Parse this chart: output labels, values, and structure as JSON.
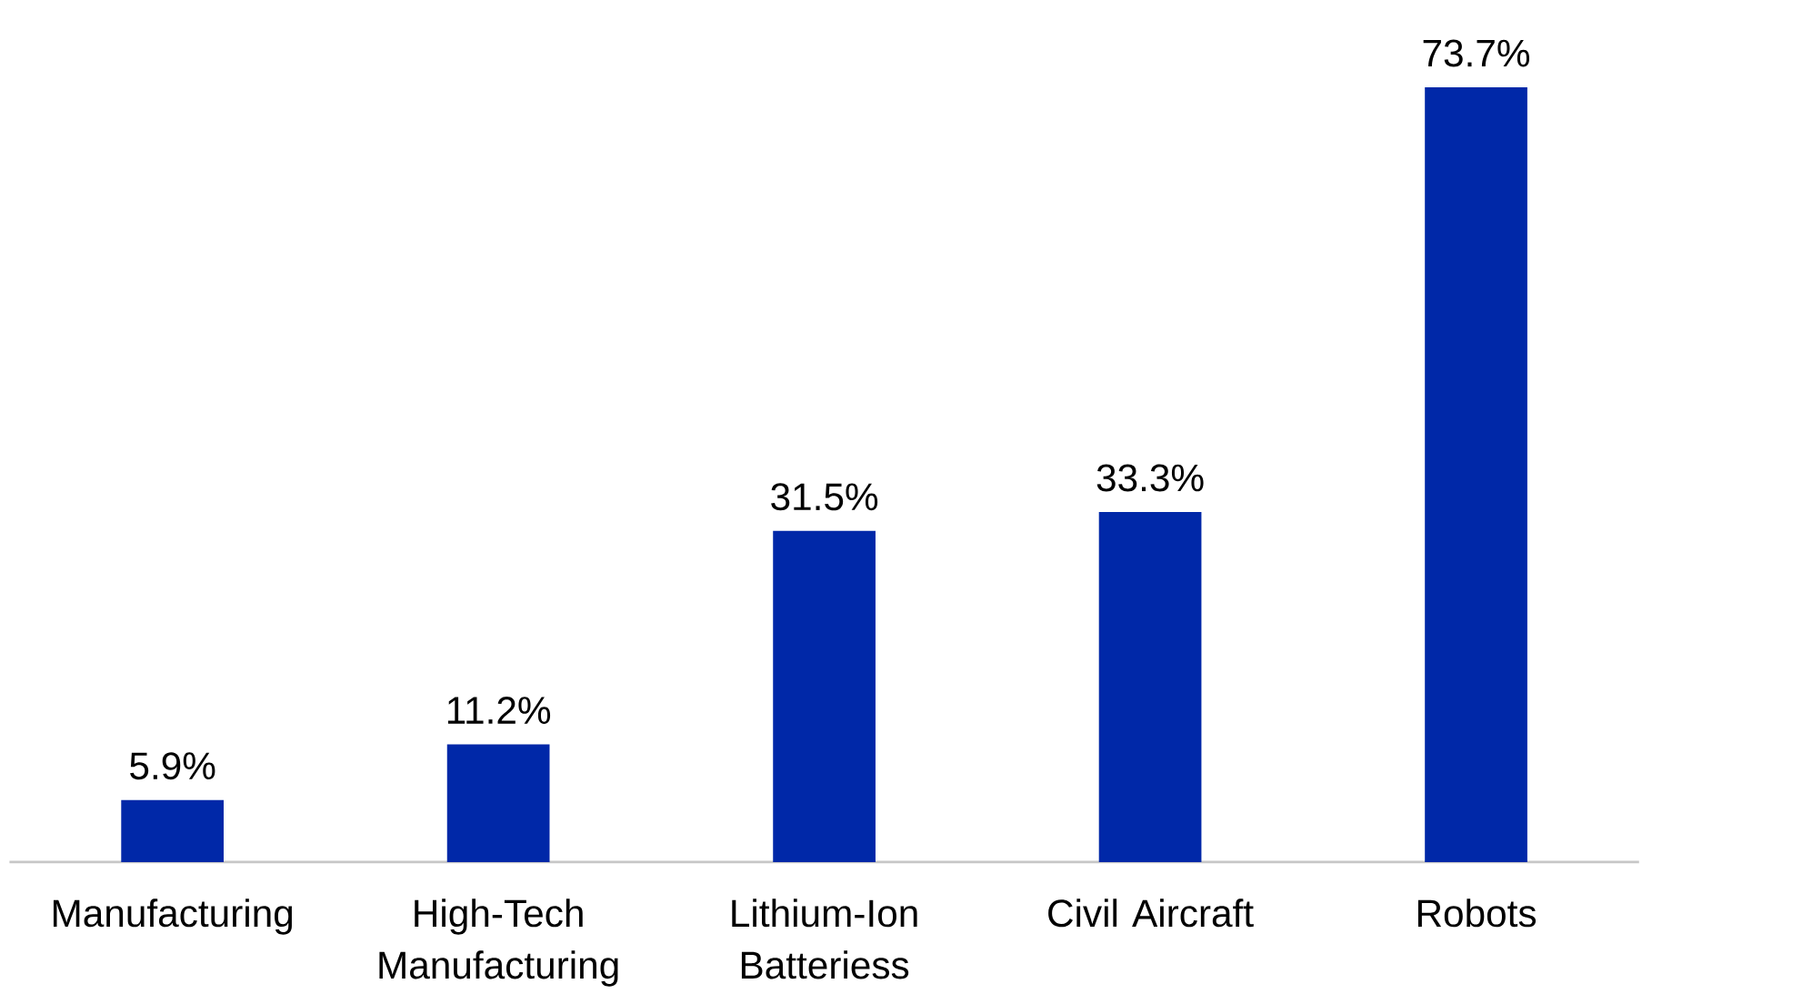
{
  "chart_data": {
    "type": "bar",
    "categories": [
      "Manufacturing",
      "High-Tech Manufacturing",
      "Lithium-Ion Batteriess",
      "Civil Aircraft",
      "Robots"
    ],
    "values": [
      5.9,
      11.2,
      31.5,
      33.3,
      73.7
    ],
    "value_labels": [
      "5.9%",
      "11.2%",
      "31.5%",
      "33.3%",
      "73.7%"
    ],
    "color": "#0028a8"
  }
}
